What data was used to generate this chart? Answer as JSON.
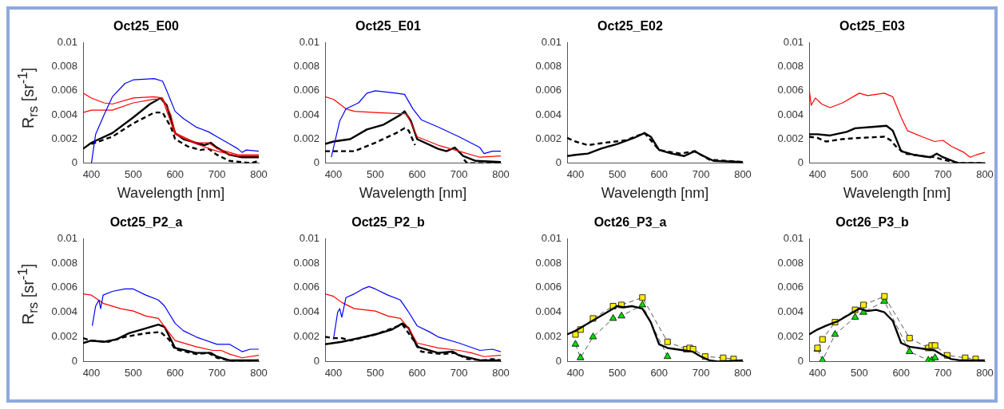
{
  "chart_data": [
    {
      "type": "line",
      "title": "Oct25_E00",
      "xlabel": "Wavelength [nm]",
      "ylabel": "R$_{rs}$ [sr$^{-1}$]",
      "xlim": [
        380,
        800
      ],
      "xticks": [
        400,
        500,
        600,
        700,
        800
      ],
      "ylim": [
        0,
        0.01
      ],
      "yticks": [
        0,
        0.002,
        0.004,
        0.006,
        0.008,
        0.01
      ],
      "series": [
        {
          "color": "#0000ff",
          "x": [
            400,
            410,
            430,
            450,
            480,
            500,
            550,
            570,
            580,
            600,
            620,
            650,
            680,
            700,
            730,
            750,
            760,
            770,
            800
          ],
          "values": [
            0,
            0.0024,
            0.004,
            0.0055,
            0.0066,
            0.0069,
            0.007,
            0.0068,
            0.006,
            0.0043,
            0.0037,
            0.003,
            0.0026,
            0.0022,
            0.0016,
            0.0012,
            0.0009,
            0.0011,
            0.001
          ]
        },
        {
          "color": "#ff0000",
          "x": [
            380,
            400,
            430,
            450,
            500,
            550,
            570,
            590,
            600,
            650,
            680,
            700,
            750,
            800
          ],
          "values": [
            0.0058,
            0.0054,
            0.005,
            0.0049,
            0.0054,
            0.0055,
            0.0054,
            0.004,
            0.0025,
            0.0017,
            0.0017,
            0.0012,
            0.0007,
            0.0007
          ]
        },
        {
          "color": "#ff0000",
          "x": [
            380,
            400,
            450,
            500,
            550,
            570,
            600,
            650,
            700,
            750,
            800
          ],
          "values": [
            0.0042,
            0.0044,
            0.0044,
            0.005,
            0.0053,
            0.0053,
            0.0024,
            0.0016,
            0.001,
            0.0006,
            0.0006
          ]
        },
        {
          "color": "#000000",
          "line_style": "solid",
          "x": [
            380,
            400,
            450,
            500,
            540,
            565,
            580,
            600,
            620,
            650,
            670,
            685,
            700,
            730,
            760,
            800
          ],
          "values": [
            0.0012,
            0.0017,
            0.0025,
            0.0038,
            0.0049,
            0.0054,
            0.0048,
            0.0025,
            0.002,
            0.0017,
            0.0015,
            0.0017,
            0.0013,
            0.0007,
            0.0005,
            0.0005
          ]
        },
        {
          "color": "#000000",
          "line_style": "dashed",
          "x": [
            400,
            450,
            500,
            550,
            570,
            590,
            600,
            630,
            660,
            680,
            700,
            730,
            760,
            780,
            800
          ],
          "values": [
            0.0016,
            0.0022,
            0.0033,
            0.0042,
            0.0042,
            0.003,
            0.002,
            0.0014,
            0.0011,
            0.0012,
            0.0007,
            0.0002,
            0.0001,
            0,
            0.0002
          ]
        }
      ]
    },
    {
      "type": "line",
      "title": "Oct25_E01",
      "xlabel": "Wavelength [nm]",
      "xlim": [
        380,
        800
      ],
      "xticks": [
        400,
        500,
        600,
        700,
        800
      ],
      "ylim": [
        0,
        0.01
      ],
      "yticks": [
        0,
        0.002,
        0.004,
        0.006,
        0.008,
        0.01
      ],
      "series": [
        {
          "color": "#0000ff",
          "x": [
            395,
            405,
            415,
            430,
            460,
            480,
            500,
            550,
            570,
            590,
            610,
            650,
            700,
            750,
            760,
            780,
            800
          ],
          "values": [
            0.0005,
            0.002,
            0.0035,
            0.0045,
            0.005,
            0.0058,
            0.006,
            0.0058,
            0.0057,
            0.0045,
            0.0036,
            0.003,
            0.0022,
            0.0013,
            0.0008,
            0.001,
            0.001
          ]
        },
        {
          "color": "#ff0000",
          "x": [
            380,
            400,
            430,
            450,
            500,
            560,
            575,
            590,
            600,
            650,
            700,
            750,
            800
          ],
          "values": [
            0.0055,
            0.0053,
            0.0045,
            0.0043,
            0.0042,
            0.0041,
            0.0041,
            0.003,
            0.0022,
            0.0015,
            0.001,
            0.0005,
            0.0006
          ]
        },
        {
          "color": "#000000",
          "line_style": "solid",
          "x": [
            380,
            400,
            440,
            480,
            520,
            560,
            570,
            585,
            600,
            650,
            670,
            690,
            710,
            740,
            800
          ],
          "values": [
            0.0016,
            0.0018,
            0.002,
            0.0028,
            0.0032,
            0.004,
            0.0043,
            0.0035,
            0.002,
            0.0012,
            0.001,
            0.0013,
            0.0006,
            0.0002,
            0.0001
          ]
        },
        {
          "color": "#000000",
          "line_style": "dashed",
          "x": [
            380,
            400,
            450,
            500,
            550,
            570,
            580,
            595,
            600,
            712,
            720,
            800
          ],
          "values": [
            0.001,
            0.001,
            0.001,
            0.0017,
            0.0025,
            0.0029,
            0.0027,
            0.0015,
            null,
            0.0003,
            0,
            0
          ]
        }
      ]
    },
    {
      "type": "line",
      "title": "Oct25_E02",
      "xlabel": "Wavelength [nm]",
      "xlim": [
        380,
        800
      ],
      "xticks": [
        400,
        500,
        600,
        700,
        800
      ],
      "ylim": [
        0,
        0.01
      ],
      "yticks": [
        0,
        0.002,
        0.004,
        0.006,
        0.008,
        0.01
      ],
      "series": [
        {
          "color": "#000000",
          "line_style": "solid",
          "x": [
            380,
            400,
            430,
            460,
            500,
            540,
            565,
            580,
            600,
            630,
            660,
            685,
            700,
            730,
            800
          ],
          "values": [
            0.0006,
            0.0007,
            0.0008,
            0.0012,
            0.0016,
            0.0021,
            0.0025,
            0.0022,
            0.0011,
            0.0008,
            0.0006,
            0.001,
            0.0007,
            0.0002,
            0.0001
          ]
        },
        {
          "color": "#000000",
          "line_style": "dashed",
          "x": [
            380,
            400,
            430,
            470,
            520,
            565,
            590,
            600,
            650,
            685,
            720,
            800
          ],
          "values": [
            0.0021,
            0.0018,
            0.0015,
            0.0017,
            0.0019,
            0.0025,
            0.0015,
            0.0011,
            0.0008,
            0.001,
            0.0003,
            0.0001
          ]
        }
      ]
    },
    {
      "type": "line",
      "title": "Oct25_E03",
      "xlabel": "Wavelength [nm]",
      "xlim": [
        380,
        800
      ],
      "xticks": [
        400,
        500,
        600,
        700,
        800
      ],
      "ylim": [
        0,
        0.01
      ],
      "yticks": [
        0,
        0.002,
        0.004,
        0.006,
        0.008,
        0.01
      ],
      "series": [
        {
          "color": "#ff0000",
          "x": [
            380,
            385,
            395,
            410,
            430,
            460,
            500,
            520,
            560,
            580,
            600,
            615,
            650,
            680,
            700,
            720,
            750,
            765,
            780,
            800
          ],
          "values": [
            0.0062,
            0.0048,
            0.0054,
            0.0049,
            0.0046,
            0.005,
            0.0058,
            0.0056,
            0.0058,
            0.0055,
            0.0038,
            0.0027,
            0.0022,
            0.0018,
            0.0019,
            0.0014,
            0.0009,
            0.0005,
            0.0007,
            0.0009
          ]
        },
        {
          "color": "#000000",
          "line_style": "solid",
          "x": [
            380,
            400,
            430,
            470,
            490,
            530,
            565,
            580,
            600,
            630,
            670,
            685,
            700,
            730,
            740,
            800
          ],
          "values": [
            0.0024,
            0.0024,
            0.0023,
            0.0026,
            0.0029,
            0.003,
            0.0031,
            0.0027,
            0.001,
            0.0007,
            0.0005,
            0.0008,
            0.0005,
            0.0001,
            0,
            0
          ]
        },
        {
          "color": "#000000",
          "line_style": "dashed",
          "x": [
            380,
            400,
            420,
            460,
            500,
            560,
            575,
            590,
            610,
            650,
            680,
            700,
            740,
            800
          ],
          "values": [
            0.0022,
            0.0021,
            0.0018,
            0.002,
            0.0021,
            0.0022,
            0.0019,
            0.0013,
            0.0008,
            0.0006,
            0.0005,
            0.0003,
            0,
            0
          ]
        }
      ]
    },
    {
      "type": "line",
      "title": "Oct25_P2_a",
      "ylabel": "R$_{rs}$ [sr$^{-1}$]",
      "xlim": [
        380,
        800
      ],
      "xticks": [
        400,
        500,
        600,
        700,
        800
      ],
      "ylim": [
        0,
        0.01
      ],
      "yticks": [
        0,
        0.002,
        0.004,
        0.006,
        0.008,
        0.01
      ],
      "series": [
        {
          "color": "#0000ff",
          "x": [
            402,
            410,
            418,
            422,
            428,
            450,
            480,
            500,
            530,
            560,
            575,
            600,
            620,
            650,
            700,
            730,
            760,
            780,
            800
          ],
          "values": [
            0.0029,
            0.0045,
            0.005,
            0.0043,
            0.0054,
            0.0057,
            0.0059,
            0.0059,
            0.0054,
            0.005,
            0.0045,
            0.0031,
            0.0025,
            0.002,
            0.0014,
            0.0014,
            0.0008,
            0.001,
            0.001
          ]
        },
        {
          "color": "#ff0000",
          "x": [
            380,
            400,
            430,
            470,
            500,
            530,
            560,
            580,
            600,
            650,
            690,
            710,
            730,
            760,
            800
          ],
          "values": [
            0.0055,
            0.0054,
            0.0047,
            0.0043,
            0.0041,
            0.0037,
            0.0035,
            0.0026,
            0.0017,
            0.0012,
            0.0009,
            0.0009,
            0.0006,
            0.0003,
            0.0005
          ]
        },
        {
          "color": "#000000",
          "line_style": "solid",
          "x": [
            380,
            400,
            430,
            460,
            490,
            520,
            560,
            575,
            600,
            650,
            685,
            700,
            730,
            800
          ],
          "values": [
            0.0015,
            0.0017,
            0.0016,
            0.0018,
            0.0023,
            0.0026,
            0.003,
            0.0028,
            0.0011,
            0.0007,
            0.0007,
            0.0004,
            0.0001,
            0.0001
          ]
        },
        {
          "color": "#000000",
          "line_style": "dashed",
          "x": [
            380,
            400,
            440,
            480,
            530,
            565,
            585,
            600,
            650,
            680,
            700,
            740,
            800
          ],
          "values": [
            0.0019,
            0.0017,
            0.0016,
            0.002,
            0.0023,
            0.0024,
            0.0018,
            0.001,
            0.0006,
            0.0007,
            0.0003,
            0,
            0.0001
          ]
        }
      ]
    },
    {
      "type": "line",
      "title": "Oct25_P2_b",
      "xlim": [
        380,
        800
      ],
      "xticks": [
        400,
        500,
        600,
        700,
        800
      ],
      "ylim": [
        0,
        0.01
      ],
      "yticks": [
        0,
        0.002,
        0.004,
        0.006,
        0.008,
        0.01
      ],
      "series": [
        {
          "color": "#0000ff",
          "x": [
            400,
            410,
            415,
            420,
            430,
            450,
            470,
            485,
            500,
            530,
            560,
            580,
            600,
            630,
            650,
            700,
            750,
            780,
            800
          ],
          "values": [
            0.0018,
            0.004,
            0.0043,
            0.0036,
            0.0052,
            0.0055,
            0.0059,
            0.0061,
            0.0059,
            0.0054,
            0.005,
            0.004,
            0.0029,
            0.0024,
            0.002,
            0.0015,
            0.0009,
            0.001,
            0.0008
          ]
        },
        {
          "color": "#ff0000",
          "x": [
            380,
            400,
            420,
            450,
            500,
            530,
            560,
            580,
            600,
            650,
            700,
            730,
            760,
            800
          ],
          "values": [
            0.0055,
            0.0053,
            0.0048,
            0.0043,
            0.0041,
            0.0037,
            0.0035,
            0.0027,
            0.0015,
            0.0011,
            0.0009,
            0.0007,
            0.0004,
            0.0005
          ]
        },
        {
          "color": "#000000",
          "line_style": "solid",
          "x": [
            380,
            420,
            460,
            500,
            540,
            565,
            580,
            600,
            650,
            685,
            700,
            750,
            800
          ],
          "values": [
            0.0014,
            0.0016,
            0.0019,
            0.0022,
            0.0026,
            0.0031,
            0.0027,
            0.0012,
            0.0007,
            0.0008,
            0.0005,
            0.0001,
            0.0001
          ]
        },
        {
          "color": "#000000",
          "line_style": "dashed",
          "x": [
            380,
            400,
            420,
            440,
            500,
            565,
            590,
            610,
            660,
            690,
            720,
            760,
            780,
            800
          ],
          "values": [
            0.002,
            0.0019,
            0.0019,
            0.0017,
            0.0022,
            0.003,
            0.0018,
            0.0008,
            0.0006,
            0.0007,
            0.0002,
            0.0001,
            0.0002,
            0.0001
          ]
        }
      ]
    },
    {
      "type": "line",
      "title": "Oct26_P3_a",
      "xlim": [
        380,
        800
      ],
      "xticks": [
        400,
        500,
        600,
        700,
        800
      ],
      "ylim": [
        0,
        0.01
      ],
      "yticks": [
        0,
        0.002,
        0.004,
        0.006,
        0.008,
        0.01
      ],
      "series": [
        {
          "color": "#000000",
          "line_style": "solid",
          "x": [
            380,
            400,
            420,
            450,
            480,
            500,
            515,
            535,
            560,
            580,
            600,
            620,
            660,
            680,
            700,
            720,
            740,
            800
          ],
          "values": [
            0.0022,
            0.0025,
            0.0029,
            0.0035,
            0.0041,
            0.0045,
            0.0044,
            0.0045,
            0.0043,
            0.0032,
            0.0014,
            0.0011,
            0.0009,
            0.0008,
            0.0004,
            0.0001,
            0,
            0.0001
          ]
        },
        {
          "color": "#ffee00",
          "line_style": "dashed",
          "marker": "square",
          "x": [
            400,
            412,
            442,
            490,
            510,
            560,
            620,
            665,
            673,
            681,
            710,
            753,
            778
          ],
          "values": [
            0.0022,
            0.0026,
            0.0035,
            0.0045,
            0.0046,
            0.0052,
            0.0016,
            0.001,
            0.0011,
            0.001,
            0.0004,
            0.0003,
            0.0002
          ]
        },
        {
          "color": "#00dd00",
          "line_style": "dashed",
          "marker": "triangle",
          "x": [
            400,
            412,
            442,
            490,
            510,
            560,
            620
          ],
          "values": [
            0.0014,
            0.0003,
            0.002,
            0.0035,
            0.0037,
            0.0046,
            0.0004
          ]
        }
      ]
    },
    {
      "type": "line",
      "title": "Oct26_P3_b",
      "xlim": [
        380,
        800
      ],
      "xticks": [
        400,
        500,
        600,
        700,
        800
      ],
      "ylim": [
        0,
        0.01
      ],
      "yticks": [
        0,
        0.002,
        0.004,
        0.006,
        0.008,
        0.01
      ],
      "series": [
        {
          "color": "#000000",
          "line_style": "solid",
          "x": [
            380,
            400,
            420,
            450,
            480,
            500,
            520,
            540,
            560,
            580,
            600,
            620,
            660,
            680,
            700,
            720,
            740,
            800
          ],
          "values": [
            0.0022,
            0.0026,
            0.0029,
            0.0033,
            0.0039,
            0.0043,
            0.0041,
            0.0042,
            0.004,
            0.0033,
            0.0015,
            0.0012,
            0.001,
            0.0009,
            0.0005,
            0.0002,
            0.0001,
            0.0001
          ]
        },
        {
          "color": "#ffee00",
          "line_style": "dashed",
          "marker": "square",
          "x": [
            400,
            412,
            442,
            490,
            510,
            560,
            620,
            665,
            673,
            681,
            710,
            753,
            778
          ],
          "values": [
            0.0011,
            0.0018,
            0.0032,
            0.0042,
            0.0046,
            0.0053,
            0.0019,
            0.0011,
            0.0013,
            0.0013,
            0.0005,
            0.0003,
            0.0002
          ]
        },
        {
          "color": "#00dd00",
          "line_style": "dashed",
          "marker": "triangle",
          "x": [
            400,
            412,
            442,
            490,
            510,
            560,
            620,
            665,
            673,
            681
          ],
          "values": [
            0.001,
            0.0001,
            0.0022,
            0.0036,
            0.004,
            0.0049,
            0.0008,
            0.0001,
            0.0001,
            0.0003
          ]
        }
      ]
    }
  ]
}
